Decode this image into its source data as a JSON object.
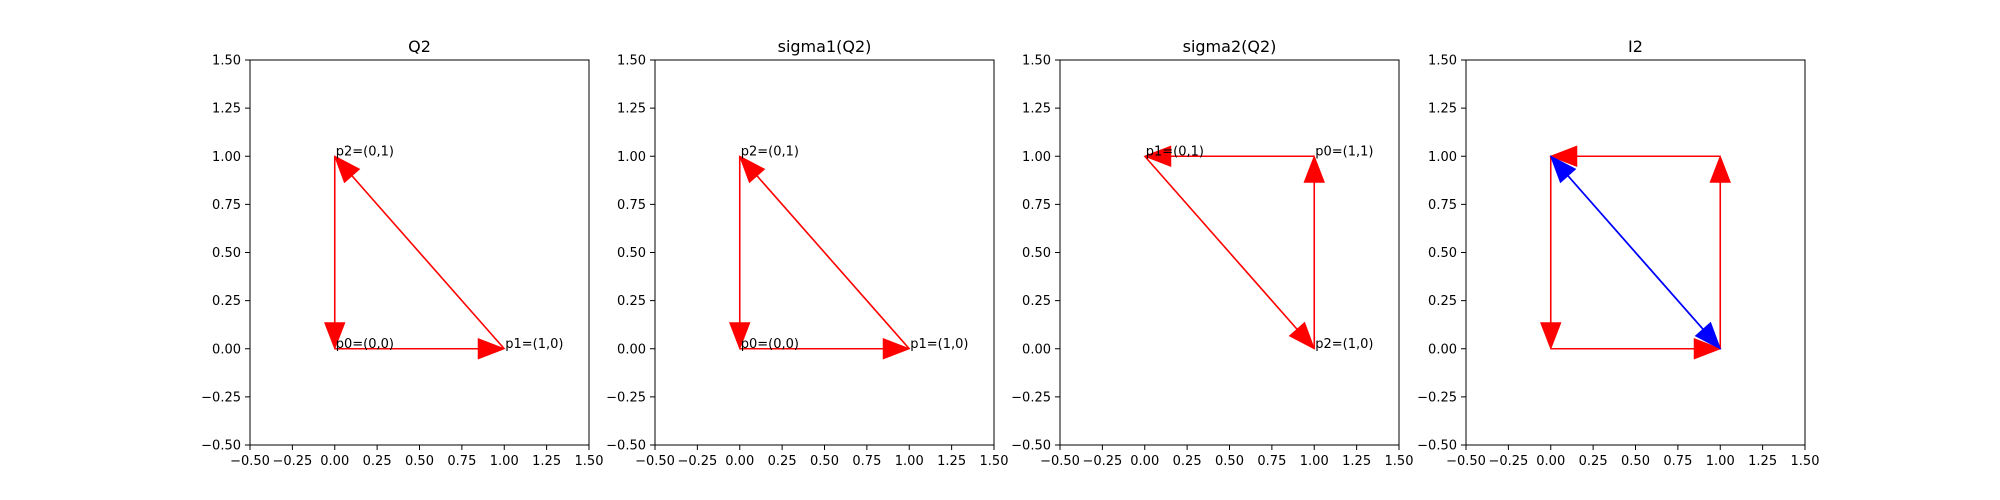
{
  "chart_data": [
    {
      "type": "vector-plot",
      "title": "Q2",
      "xlim": [
        -0.5,
        1.5
      ],
      "ylim": [
        -0.5,
        1.5
      ],
      "xticks": [
        "−0.50",
        "−0.25",
        "0.00",
        "0.25",
        "0.50",
        "0.75",
        "1.00",
        "1.25",
        "1.50"
      ],
      "yticks": [
        "−0.50",
        "−0.25",
        "0.00",
        "0.25",
        "0.50",
        "0.75",
        "1.00",
        "1.25",
        "1.50"
      ],
      "arrows": [
        {
          "from": [
            0,
            0
          ],
          "to": [
            1,
            0
          ],
          "color": "#ff0000"
        },
        {
          "from": [
            1,
            0
          ],
          "to": [
            0,
            1
          ],
          "color": "#ff0000"
        },
        {
          "from": [
            0,
            1
          ],
          "to": [
            0,
            0
          ],
          "color": "#ff0000"
        }
      ],
      "points": [
        {
          "x": 0,
          "y": 0,
          "label": "p0=(0,0)"
        },
        {
          "x": 1,
          "y": 0,
          "label": "p1=(1,0)"
        },
        {
          "x": 0,
          "y": 1,
          "label": "p2=(0,1)"
        }
      ]
    },
    {
      "type": "vector-plot",
      "title": "sigma1(Q2)",
      "xlim": [
        -0.5,
        1.5
      ],
      "ylim": [
        -0.5,
        1.5
      ],
      "xticks": [
        "−0.50",
        "−0.25",
        "0.00",
        "0.25",
        "0.50",
        "0.75",
        "1.00",
        "1.25",
        "1.50"
      ],
      "yticks": [
        "−0.50",
        "−0.25",
        "0.00",
        "0.25",
        "0.50",
        "0.75",
        "1.00",
        "1.25",
        "1.50"
      ],
      "arrows": [
        {
          "from": [
            0,
            0
          ],
          "to": [
            1,
            0
          ],
          "color": "#ff0000"
        },
        {
          "from": [
            1,
            0
          ],
          "to": [
            0,
            1
          ],
          "color": "#ff0000"
        },
        {
          "from": [
            0,
            1
          ],
          "to": [
            0,
            0
          ],
          "color": "#ff0000"
        }
      ],
      "points": [
        {
          "x": 0,
          "y": 0,
          "label": "p0=(0,0)"
        },
        {
          "x": 1,
          "y": 0,
          "label": "p1=(1,0)"
        },
        {
          "x": 0,
          "y": 1,
          "label": "p2=(0,1)"
        }
      ]
    },
    {
      "type": "vector-plot",
      "title": "sigma2(Q2)",
      "xlim": [
        -0.5,
        1.5
      ],
      "ylim": [
        -0.5,
        1.5
      ],
      "xticks": [
        "−0.50",
        "−0.25",
        "0.00",
        "0.25",
        "0.50",
        "0.75",
        "1.00",
        "1.25",
        "1.50"
      ],
      "yticks": [
        "−0.50",
        "−0.25",
        "0.00",
        "0.25",
        "0.50",
        "0.75",
        "1.00",
        "1.25",
        "1.50"
      ],
      "arrows": [
        {
          "from": [
            1,
            0
          ],
          "to": [
            1,
            1
          ],
          "color": "#ff0000"
        },
        {
          "from": [
            1,
            1
          ],
          "to": [
            0,
            1
          ],
          "color": "#ff0000"
        },
        {
          "from": [
            0,
            1
          ],
          "to": [
            1,
            0
          ],
          "color": "#ff0000"
        }
      ],
      "points": [
        {
          "x": 1,
          "y": 1,
          "label": "p0=(1,1)"
        },
        {
          "x": 0,
          "y": 1,
          "label": "p1=(0,1)"
        },
        {
          "x": 1,
          "y": 0,
          "label": "p2=(1,0)"
        }
      ]
    },
    {
      "type": "vector-plot",
      "title": "I2",
      "xlim": [
        -0.5,
        1.5
      ],
      "ylim": [
        -0.5,
        1.5
      ],
      "xticks": [
        "−0.50",
        "−0.25",
        "0.00",
        "0.25",
        "0.50",
        "0.75",
        "1.00",
        "1.25",
        "1.50"
      ],
      "yticks": [
        "−0.50",
        "−0.25",
        "0.00",
        "0.25",
        "0.50",
        "0.75",
        "1.00",
        "1.25",
        "1.50"
      ],
      "arrows": [
        {
          "from": [
            0,
            0
          ],
          "to": [
            1,
            0
          ],
          "color": "#ff0000"
        },
        {
          "from": [
            1,
            0
          ],
          "to": [
            1,
            1
          ],
          "color": "#ff0000"
        },
        {
          "from": [
            1,
            1
          ],
          "to": [
            0,
            1
          ],
          "color": "#ff0000"
        },
        {
          "from": [
            0,
            1
          ],
          "to": [
            0,
            0
          ],
          "color": "#ff0000"
        },
        {
          "from": [
            1,
            0
          ],
          "to": [
            0,
            1
          ],
          "color": "#0000ff"
        },
        {
          "from": [
            0,
            1
          ],
          "to": [
            1,
            0
          ],
          "color": "#0000ff"
        }
      ],
      "points": []
    }
  ]
}
